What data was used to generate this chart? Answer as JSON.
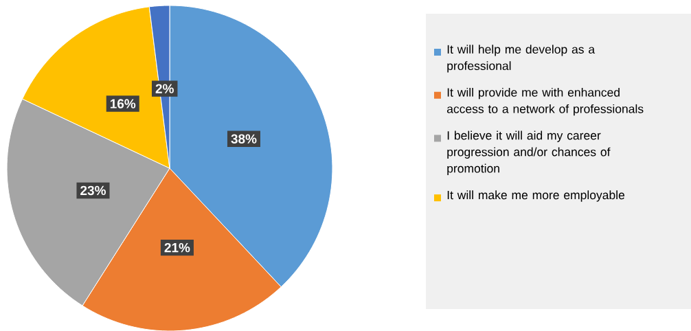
{
  "chart_data": {
    "type": "pie",
    "categories": [
      "It will help me develop as a professional",
      "It will provide me with enhanced access to a network of professionals",
      "I believe it will aid my career progression and/or chances of promotion",
      "It will make me more employable",
      null
    ],
    "values": [
      38,
      21,
      23,
      16,
      2
    ],
    "colors": [
      "#5b9bd5",
      "#ed7d31",
      "#a5a5a5",
      "#ffc000",
      "#4472c4"
    ],
    "value_labels": [
      "38%",
      "21%",
      "23%",
      "16%",
      "2%"
    ],
    "legend": "right"
  }
}
